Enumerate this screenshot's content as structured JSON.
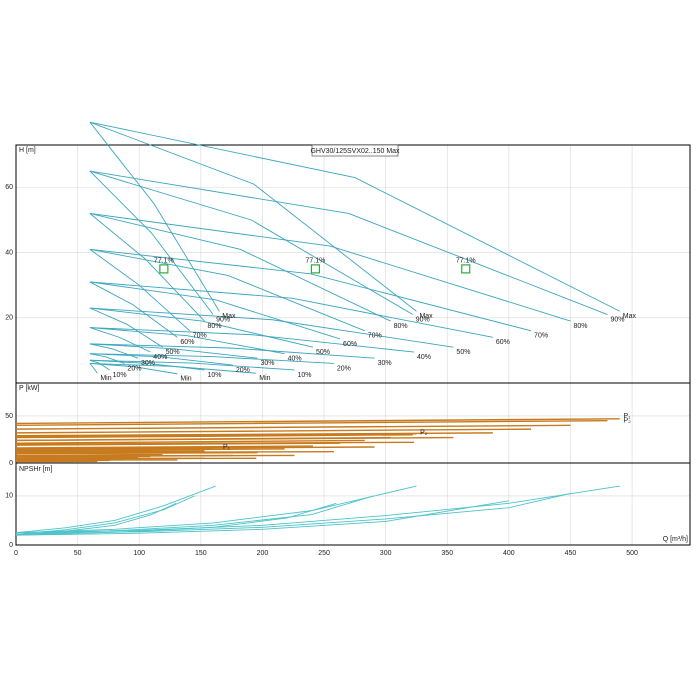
{
  "chart_data": [
    {
      "type": "line",
      "title": "GHV30/125SVX02..150 Max",
      "y_label": "H [m]",
      "color": "#3aa6bf",
      "xlim": [
        0,
        547
      ],
      "ylim": [
        0,
        73
      ],
      "yticks": [
        20,
        40,
        60
      ],
      "grid": true,
      "series": [
        {
          "name": "Max",
          "x": [
            60,
            275,
            490
          ],
          "values": [
            80,
            63,
            22
          ]
        },
        {
          "name": "90%",
          "x": [
            60,
            270,
            480
          ],
          "values": [
            65,
            52,
            21
          ]
        },
        {
          "name": "80%",
          "x": [
            60,
            255,
            450
          ],
          "values": [
            52,
            42,
            19
          ]
        },
        {
          "name": "70%",
          "x": [
            60,
            239,
            418
          ],
          "values": [
            41,
            33.5,
            16
          ]
        },
        {
          "name": "60%",
          "x": [
            60,
            224,
            387
          ],
          "values": [
            31,
            26,
            14
          ]
        },
        {
          "name": "50%",
          "x": [
            60,
            208,
            355
          ],
          "values": [
            23,
            19.4,
            11
          ]
        },
        {
          "name": "40%",
          "x": [
            60,
            192,
            323
          ],
          "values": [
            17,
            14.8,
            9.5
          ]
        },
        {
          "name": "30%",
          "x": [
            60,
            176,
            291
          ],
          "values": [
            12,
            10.7,
            7.6
          ]
        },
        {
          "name": "20%",
          "x": [
            60,
            159,
            258
          ],
          "values": [
            9,
            8.1,
            6
          ]
        },
        {
          "name": "10%",
          "x": [
            60,
            143,
            226
          ],
          "values": [
            7,
            6.1,
            4
          ]
        },
        {
          "name": "Min",
          "x": [
            60,
            128,
            195
          ],
          "values": [
            6,
            5.1,
            3
          ]
        },
        {
          "name": "Max",
          "x": [
            60,
            193,
            325
          ],
          "values": [
            80,
            61,
            22
          ]
        },
        {
          "name": "90%",
          "x": [
            60,
            191,
            322
          ],
          "values": [
            65,
            50,
            21
          ]
        },
        {
          "name": "80%",
          "x": [
            60,
            182,
            304
          ],
          "values": [
            52,
            41,
            19
          ]
        },
        {
          "name": "70%",
          "x": [
            60,
            172,
            283
          ],
          "values": [
            41,
            33,
            16
          ]
        },
        {
          "name": "60%",
          "x": [
            60,
            162,
            263
          ],
          "values": [
            31,
            25.5,
            13.5
          ]
        },
        {
          "name": "50%",
          "x": [
            60,
            151,
            241
          ],
          "values": [
            23,
            19,
            11
          ]
        },
        {
          "name": "40%",
          "x": [
            60,
            139,
            218
          ],
          "values": [
            17,
            14.5,
            9
          ]
        },
        {
          "name": "30%",
          "x": [
            60,
            128,
            196
          ],
          "values": [
            12,
            10.5,
            7.6
          ]
        },
        {
          "name": "20%",
          "x": [
            60,
            118,
            176
          ],
          "values": [
            9,
            8,
            5.5
          ]
        },
        {
          "name": "10%",
          "x": [
            60,
            107,
            153
          ],
          "values": [
            7,
            6,
            4
          ]
        },
        {
          "name": "Min",
          "x": [
            60,
            96,
            131
          ],
          "values": [
            6,
            5,
            2.8
          ]
        },
        {
          "name": "Max",
          "x": [
            60,
            112,
            165
          ],
          "values": [
            80,
            55,
            22
          ]
        },
        {
          "name": "90%",
          "x": [
            60,
            110,
            160
          ],
          "values": [
            65,
            46,
            21
          ]
        },
        {
          "name": "80%",
          "x": [
            60,
            105,
            153
          ],
          "values": [
            52,
            38,
            19
          ]
        },
        {
          "name": "70%",
          "x": [
            60,
            100,
            141
          ],
          "values": [
            41,
            30,
            16
          ]
        },
        {
          "name": "60%",
          "x": [
            60,
            95,
            131
          ],
          "values": [
            31,
            24,
            14
          ]
        },
        {
          "name": "50%",
          "x": [
            60,
            90,
            119
          ],
          "values": [
            23,
            18,
            11
          ]
        },
        {
          "name": "40%",
          "x": [
            60,
            84,
            109
          ],
          "values": [
            17,
            14,
            9.5
          ]
        },
        {
          "name": "30%",
          "x": [
            60,
            78,
            99
          ],
          "values": [
            12,
            10.5,
            7.6
          ]
        },
        {
          "name": "20%",
          "x": [
            60,
            73,
            88
          ],
          "values": [
            9,
            8,
            6
          ]
        },
        {
          "name": "10%",
          "x": [
            60,
            68,
            76
          ],
          "values": [
            7,
            6,
            4
          ]
        },
        {
          "name": "Min",
          "x": [
            60,
            63,
            66
          ],
          "values": [
            6,
            4.6,
            3
          ]
        }
      ],
      "bep": {
        "x": [
          120,
          243,
          365
        ],
        "values": [
          35,
          35,
          35
        ],
        "labels": [
          "77.1%",
          "77.1%",
          "77.1%"
        ],
        "color": "#2eaa3c"
      }
    },
    {
      "type": "line",
      "y_label": "P [kW]",
      "color": "#c77a1e",
      "xlim": [
        0,
        547
      ],
      "ylim": [
        0,
        85
      ],
      "yticks": [
        0,
        50
      ],
      "grid": true,
      "series": [
        {
          "x": [
            0,
            490
          ],
          "values": [
            42,
            47
          ]
        },
        {
          "x": [
            0,
            480
          ],
          "values": [
            40,
            45
          ]
        },
        {
          "x": [
            0,
            450
          ],
          "values": [
            36,
            40
          ]
        },
        {
          "x": [
            0,
            418
          ],
          "values": [
            32,
            36
          ]
        },
        {
          "x": [
            0,
            387
          ],
          "values": [
            29,
            32
          ]
        },
        {
          "x": [
            0,
            355
          ],
          "values": [
            24,
            27
          ]
        },
        {
          "x": [
            0,
            323
          ],
          "values": [
            20,
            22
          ]
        },
        {
          "x": [
            0,
            291
          ],
          "values": [
            15,
            17
          ]
        },
        {
          "x": [
            0,
            258
          ],
          "values": [
            11,
            12
          ]
        },
        {
          "x": [
            0,
            226
          ],
          "values": [
            7,
            8
          ]
        },
        {
          "x": [
            0,
            195
          ],
          "values": [
            4.5,
            5
          ]
        },
        {
          "x": [
            0,
            325
          ],
          "values": [
            28,
            31
          ]
        },
        {
          "x": [
            0,
            322
          ],
          "values": [
            27,
            30
          ]
        },
        {
          "x": [
            0,
            304
          ],
          "values": [
            24,
            27
          ]
        },
        {
          "x": [
            0,
            283
          ],
          "values": [
            21,
            24
          ]
        },
        {
          "x": [
            0,
            263
          ],
          "values": [
            19,
            21
          ]
        },
        {
          "x": [
            0,
            241
          ],
          "values": [
            16,
            18
          ]
        },
        {
          "x": [
            0,
            218
          ],
          "values": [
            13,
            15
          ]
        },
        {
          "x": [
            0,
            196
          ],
          "values": [
            10,
            11
          ]
        },
        {
          "x": [
            0,
            176
          ],
          "values": [
            7,
            8
          ]
        },
        {
          "x": [
            0,
            153
          ],
          "values": [
            4.5,
            5
          ]
        },
        {
          "x": [
            0,
            131
          ],
          "values": [
            3,
            3.3
          ]
        },
        {
          "x": [
            0,
            165
          ],
          "values": [
            14,
            16
          ]
        },
        {
          "x": [
            0,
            160
          ],
          "values": [
            13.5,
            15
          ]
        },
        {
          "x": [
            0,
            153
          ],
          "values": [
            12,
            13
          ]
        },
        {
          "x": [
            0,
            141
          ],
          "values": [
            11,
            12
          ]
        },
        {
          "x": [
            0,
            131
          ],
          "values": [
            10,
            11
          ]
        },
        {
          "x": [
            0,
            119
          ],
          "values": [
            8,
            9
          ]
        },
        {
          "x": [
            0,
            109
          ],
          "values": [
            6.5,
            7
          ]
        },
        {
          "x": [
            0,
            99
          ],
          "values": [
            5,
            6
          ]
        },
        {
          "x": [
            0,
            88
          ],
          "values": [
            3.6,
            4
          ]
        },
        {
          "x": [
            0,
            76
          ],
          "values": [
            2.4,
            2.7
          ]
        },
        {
          "x": [
            0,
            66
          ],
          "values": [
            1.5,
            1.7
          ]
        }
      ],
      "annotations": [
        {
          "text": "P₁",
          "x": 493,
          "y": 50
        },
        {
          "text": "P₂",
          "x": 493,
          "y": 45
        },
        {
          "text": "P₂",
          "x": 328,
          "y": 32
        },
        {
          "text": "P₁",
          "x": 168,
          "y": 17
        }
      ]
    },
    {
      "type": "line",
      "y_label": "NPSHr [m]",
      "x_label": "Q [m³/h]",
      "color": "#4cc3c9",
      "xlim": [
        0,
        547
      ],
      "ylim": [
        0,
        16.7
      ],
      "yticks": [
        0,
        10
      ],
      "xticks": [
        0,
        50,
        100,
        150,
        200,
        250,
        300,
        350,
        400,
        450,
        500
      ],
      "grid": true,
      "series": [
        {
          "x": [
            0,
            100,
            200,
            300,
            400,
            490
          ],
          "values": [
            2.5,
            3,
            4,
            6,
            8.5,
            12
          ]
        },
        {
          "x": [
            0,
            100,
            200,
            300,
            400,
            450
          ],
          "values": [
            2.2,
            2.7,
            3.6,
            5.3,
            7.6,
            10.5
          ]
        },
        {
          "x": [
            0,
            100,
            200,
            300,
            400
          ],
          "values": [
            2,
            2.4,
            3.2,
            4.8,
            9
          ]
        },
        {
          "x": [
            0,
            80,
            160,
            240,
            325
          ],
          "values": [
            2.5,
            3.2,
            4.5,
            7,
            12
          ]
        },
        {
          "x": [
            0,
            80,
            160,
            240,
            290
          ],
          "values": [
            2.2,
            2.9,
            4,
            6.2,
            10
          ]
        },
        {
          "x": [
            0,
            80,
            160,
            220,
            260
          ],
          "values": [
            2,
            2.6,
            3.6,
            5.5,
            8.5
          ]
        },
        {
          "x": [
            0,
            40,
            80,
            120,
            162
          ],
          "values": [
            2.5,
            3.5,
            5,
            8,
            12
          ]
        },
        {
          "x": [
            0,
            40,
            80,
            120,
            145
          ],
          "values": [
            2.2,
            3.1,
            4.5,
            7.2,
            10
          ]
        },
        {
          "x": [
            0,
            40,
            80,
            110,
            130
          ],
          "values": [
            2,
            2.8,
            4,
            6.2,
            8.5
          ]
        }
      ]
    }
  ]
}
